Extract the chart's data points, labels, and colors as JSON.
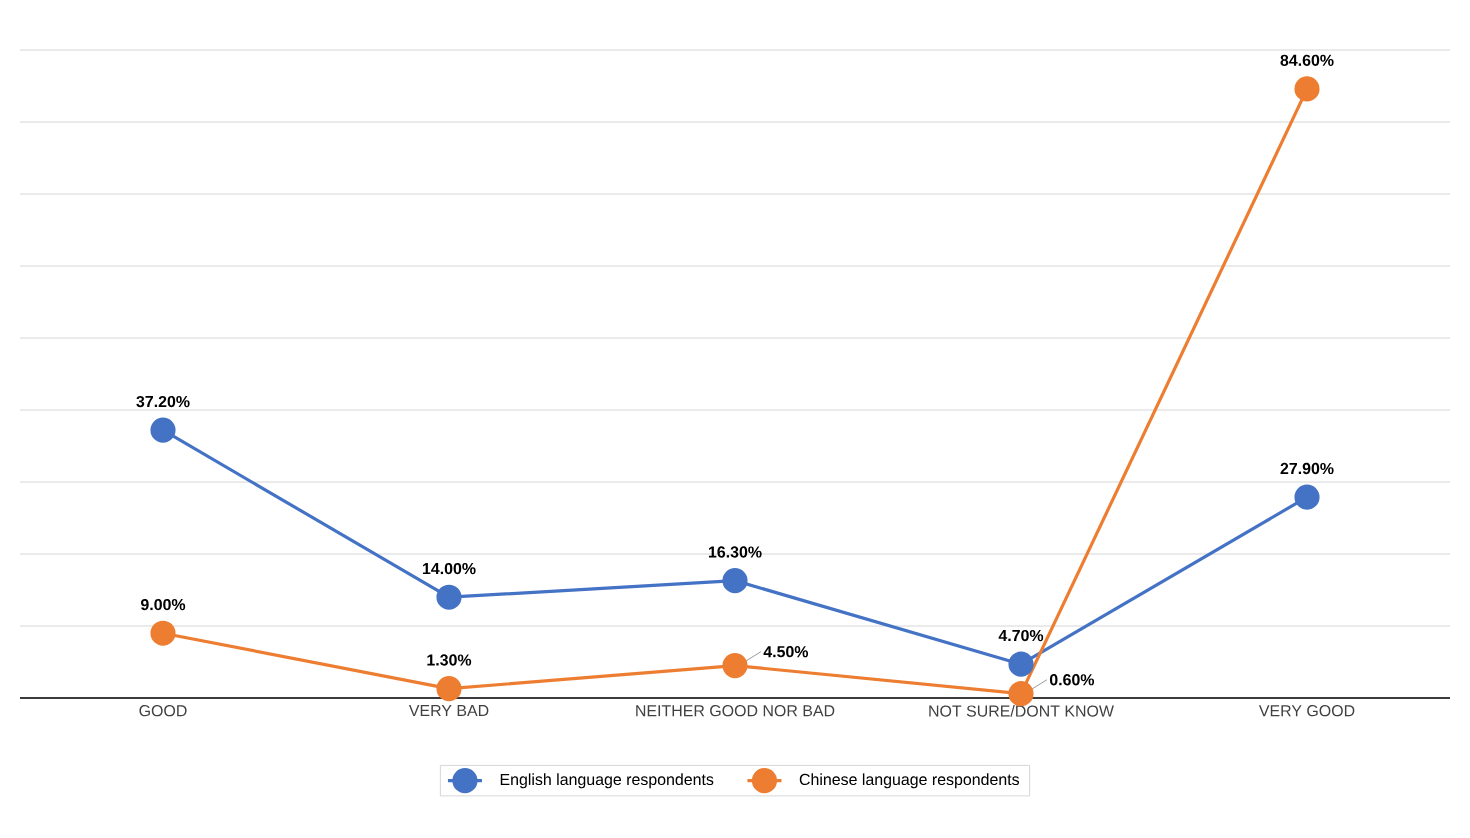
{
  "chart_data": {
    "type": "line",
    "categories": [
      "GOOD",
      "VERY BAD",
      "NEITHER GOOD NOR BAD",
      "NOT SURE/DONT KNOW",
      "VERY GOOD"
    ],
    "series": [
      {
        "name": "English language respondents",
        "color": "#4472c4",
        "values": [
          37.2,
          14.0,
          16.3,
          4.7,
          27.9
        ],
        "value_labels": [
          "37.20%",
          "14.00%",
          "16.30%",
          "4.70%",
          "27.90%"
        ]
      },
      {
        "name": "Chinese language respondents",
        "color": "#ed7d31",
        "values": [
          9.0,
          1.3,
          4.5,
          0.6,
          84.6
        ],
        "value_labels": [
          "9.00%",
          "1.30%",
          "4.50%",
          "0.60%",
          "84.60%"
        ]
      }
    ],
    "grid": "y",
    "legend": "bottom",
    "marker": "circle",
    "line_style": "solid"
  }
}
